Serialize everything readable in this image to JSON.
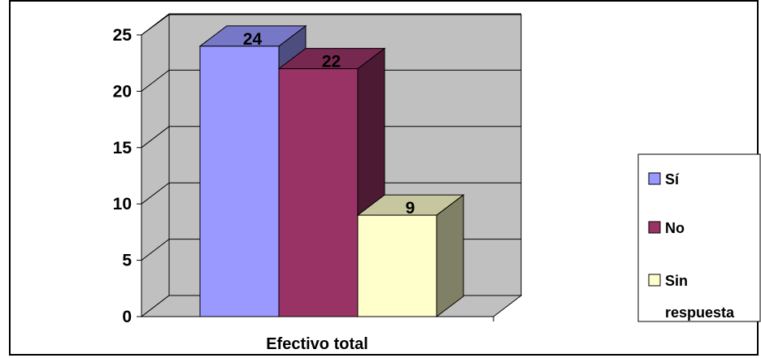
{
  "chart_data": {
    "type": "bar",
    "categories": [
      "Efectivo total"
    ],
    "series": [
      {
        "name": "Sí",
        "values": [
          24
        ],
        "color": "#9999ff"
      },
      {
        "name": "No",
        "values": [
          22
        ],
        "color": "#993366"
      },
      {
        "name": "Sin respuesta",
        "values": [
          9
        ],
        "color": "#ffffcc"
      }
    ],
    "xlabel": "Efectivo total",
    "ylabel": "",
    "ylim": [
      0,
      25
    ],
    "yticks": [
      0,
      5,
      10,
      15,
      20,
      25
    ],
    "data_labels": [
      "24",
      "22",
      "9"
    ],
    "grid": true,
    "style": "3d-clustered-column",
    "wall_color": "#c0c0c0",
    "legend": {
      "position": "right",
      "entries": [
        {
          "label": "Sí",
          "color": "#9999ff"
        },
        {
          "label": "No",
          "color": "#993366"
        },
        {
          "label": "Sin respuesta",
          "label_line1": "Sin",
          "label_line2": "respuesta",
          "color": "#ffffcc"
        }
      ]
    }
  }
}
